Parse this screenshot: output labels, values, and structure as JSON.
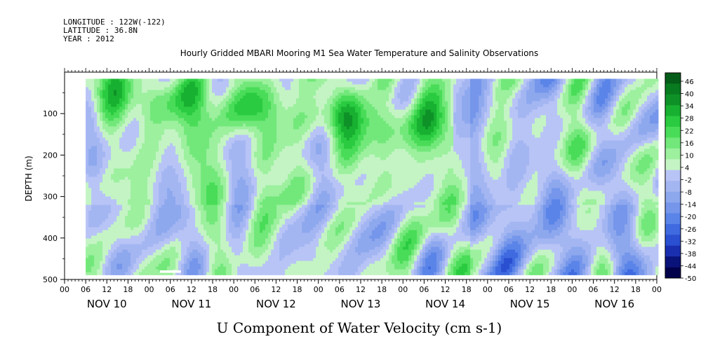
{
  "chart_data": {
    "type": "heatmap",
    "header_lines": [
      "LONGITUDE : 122W(-122)",
      "LATITUDE : 36.8N",
      "YEAR : 2012"
    ],
    "title": "Hourly Gridded MBARI Mooring M1 Sea Water Temperature and Salinity Observations",
    "xlabel": "U Component of Water Velocity (cm s-1)",
    "ylabel": "DEPTH (m)",
    "x_range_hours": [
      0,
      168
    ],
    "y_range": [
      0,
      500
    ],
    "y_inverted": true,
    "data_extent": {
      "x_start_hour": 6,
      "x_end_hour": 168,
      "depth_top": 16,
      "depth_bottom": 484
    },
    "hour_ticks": [
      0,
      6,
      12,
      18,
      0,
      6,
      12,
      18,
      0,
      6,
      12,
      18,
      0,
      6,
      12,
      18,
      0,
      6,
      12,
      18,
      0,
      6,
      12,
      18,
      0,
      6,
      12,
      18,
      0
    ],
    "hour_tick_labels": [
      "00",
      "06",
      "12",
      "18",
      "00",
      "06",
      "12",
      "18",
      "00",
      "06",
      "12",
      "18",
      "00",
      "06",
      "12",
      "18",
      "00",
      "06",
      "12",
      "18",
      "00",
      "06",
      "12",
      "18",
      "00",
      "06",
      "12",
      "18",
      "00"
    ],
    "day_labels": [
      "NOV 10",
      "NOV 11",
      "NOV 12",
      "NOV 13",
      "NOV 14",
      "NOV 15",
      "NOV 16"
    ],
    "y_ticks": [
      100,
      200,
      300,
      400,
      500
    ],
    "y_tick_labels": [
      "100",
      "200",
      "300",
      "400",
      "500"
    ],
    "colorbar": {
      "levels": [
        "46",
        "40",
        "34",
        "28",
        "22",
        "16",
        "10",
        "4",
        "-2",
        "-8",
        "-14",
        "-20",
        "-26",
        "-32",
        "-38",
        "-44",
        "-50"
      ],
      "min": -50,
      "max": 52,
      "colors": [
        "#00004b",
        "#0a137a",
        "#1a2fb0",
        "#2a4fd0",
        "#3f6ae0",
        "#5a84e8",
        "#7596ea",
        "#8ea8ee",
        "#a4b6f2",
        "#b8c4f6",
        "#c4f4c4",
        "#9cf09e",
        "#72e87a",
        "#49dc58",
        "#2acb40",
        "#18b030",
        "#0e9228",
        "#087a20",
        "#045c18"
      ]
    }
  }
}
